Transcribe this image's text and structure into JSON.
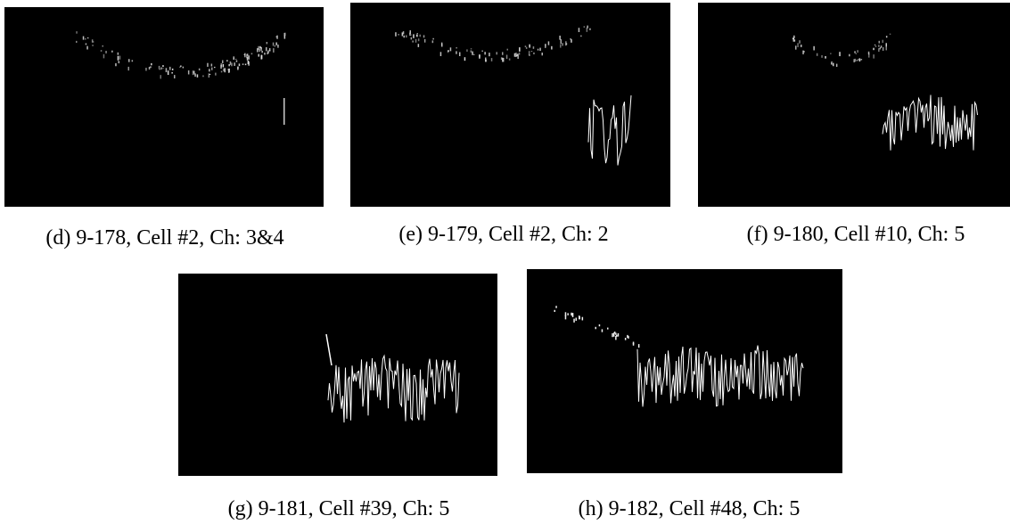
{
  "panels": [
    {
      "caption": "(d) 9-178, Cell #2, Ch: 3&4"
    },
    {
      "caption": "(e) 9-179, Cell #2, Ch: 2"
    },
    {
      "caption": "(f) 9-180, Cell #10, Ch: 5"
    },
    {
      "caption": "(g) 9-181, Cell #39, Ch: 5"
    },
    {
      "caption": "(h) 9-182, Cell #48, Ch: 5"
    }
  ]
}
